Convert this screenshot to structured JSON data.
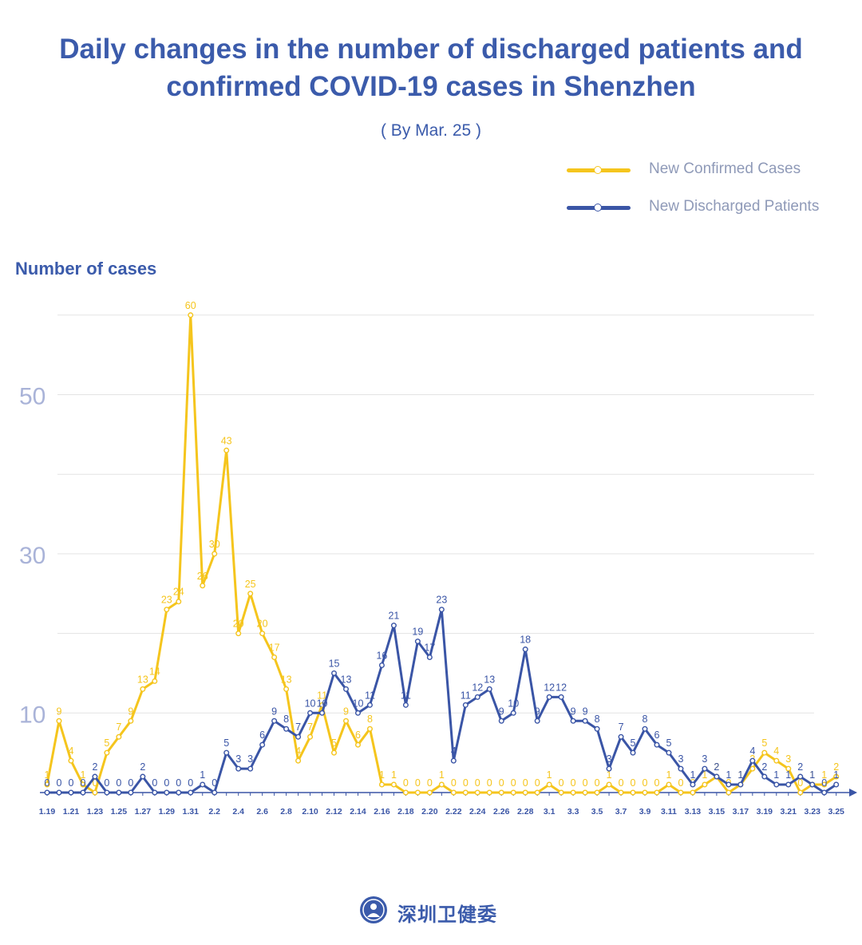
{
  "title_line1": "Daily changes in the number of discharged patients and",
  "title_line2": "confirmed COVID-19 cases in Shenzhen",
  "subtitle": "( By Mar. 25 )",
  "colors": {
    "confirmed": "#f5c51d",
    "discharged": "#3a55a6",
    "title": "#3b5bab",
    "ytick": "#a9b3d8"
  },
  "footer": {
    "logo": "shenzhen-health-commission-seal-icon",
    "text": "深圳卫健委"
  },
  "chart_data": {
    "type": "line",
    "title": "Daily changes in the number of discharged patients and confirmed COVID-19 cases in Shenzhen",
    "ylabel": "Number of cases",
    "xlabel": "",
    "ylim": [
      0,
      60
    ],
    "yticks": [
      10,
      30,
      50
    ],
    "grid": true,
    "legend_position": "top-right",
    "dates": [
      "1.19",
      "1.20",
      "1.21",
      "1.22",
      "1.23",
      "1.24",
      "1.25",
      "1.26",
      "1.27",
      "1.28",
      "1.29",
      "1.30",
      "1.31",
      "2.1",
      "2.2",
      "2.3",
      "2.4",
      "2.5",
      "2.6",
      "2.7",
      "2.8",
      "2.9",
      "2.10",
      "2.11",
      "2.12",
      "2.13",
      "2.14",
      "2.15",
      "2.16",
      "2.17",
      "2.18",
      "2.19",
      "2.20",
      "2.21",
      "2.22",
      "2.23",
      "2.24",
      "2.25",
      "2.26",
      "2.27",
      "2.28",
      "2.29",
      "3.1",
      "3.2",
      "3.3",
      "3.4",
      "3.5",
      "3.6",
      "3.7",
      "3.8",
      "3.9",
      "3.10",
      "3.11",
      "3.12",
      "3.13",
      "3.14",
      "3.15",
      "3.16",
      "3.17",
      "3.18",
      "3.19",
      "3.20",
      "3.21",
      "3.22",
      "3.23",
      "3.24",
      "3.25"
    ],
    "tick_labels": [
      "1.19",
      "1.21",
      "1.23",
      "1.25",
      "1.27",
      "1.29",
      "1.31",
      "2.2",
      "2.4",
      "2.6",
      "2.8",
      "2.10",
      "2.12",
      "2.14",
      "2.16",
      "2.18",
      "2.20",
      "2.22",
      "2.24",
      "2.26",
      "2.28",
      "3.1",
      "3.3",
      "3.5",
      "3.7",
      "3.9",
      "3.11",
      "3.13",
      "3.15",
      "3.17",
      "3.19",
      "3.21",
      "3.23",
      "3.25"
    ],
    "series": [
      {
        "name": "New Confirmed Cases",
        "values": [
          1,
          9,
          4,
          1,
          0,
          5,
          7,
          9,
          13,
          14,
          23,
          24,
          60,
          26,
          30,
          43,
          20,
          25,
          20,
          17,
          13,
          4,
          7,
          11,
          5,
          9,
          6,
          8,
          1,
          1,
          0,
          0,
          0,
          1,
          0,
          0,
          0,
          0,
          0,
          0,
          0,
          0,
          1,
          0,
          0,
          0,
          0,
          1,
          0,
          0,
          0,
          0,
          1,
          0,
          0,
          1,
          2,
          0,
          1,
          3,
          5,
          4,
          3,
          0,
          1,
          1,
          2
        ]
      },
      {
        "name": "New Discharged Patients",
        "values": [
          0,
          0,
          0,
          0,
          2,
          0,
          0,
          0,
          2,
          0,
          0,
          0,
          0,
          1,
          0,
          5,
          3,
          3,
          6,
          9,
          8,
          7,
          10,
          10,
          15,
          13,
          10,
          11,
          16,
          21,
          11,
          19,
          17,
          23,
          4,
          11,
          12,
          13,
          9,
          10,
          18,
          9,
          12,
          12,
          9,
          9,
          8,
          3,
          7,
          5,
          8,
          6,
          5,
          3,
          1,
          3,
          2,
          1,
          1,
          4,
          2,
          1,
          1,
          2,
          1,
          0,
          1
        ]
      }
    ]
  }
}
